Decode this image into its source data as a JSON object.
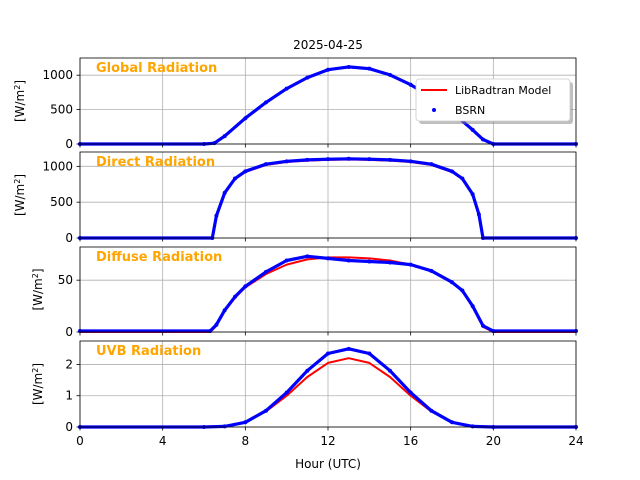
{
  "figure": {
    "title": "2025-04-25",
    "xlabel": "Hour (UTC)",
    "xlim": [
      0,
      24
    ],
    "xticks": [
      0,
      4,
      8,
      12,
      16,
      20,
      24
    ],
    "grid": true,
    "legend": {
      "placement": "top-right of first panel",
      "entries": [
        {
          "label": "LibRadtran Model",
          "color": "#ff0000",
          "style": "line"
        },
        {
          "label": "BSRN",
          "color": "#0000ff",
          "style": "dots"
        }
      ]
    },
    "panel_label_color": "#ffa500"
  },
  "chart_data": [
    {
      "type": "line",
      "panel_label": "Global Radiation",
      "ylabel_base": "[W/m",
      "ylabel_sup": "2",
      "ylabel_end": "]",
      "ylim": [
        0,
        1250
      ],
      "yticks": [
        0,
        500,
        1000
      ],
      "x": [
        0,
        6,
        6.5,
        7,
        8,
        9,
        10,
        11,
        12,
        13,
        14,
        15,
        16,
        17,
        18,
        19,
        19.5,
        20,
        24
      ],
      "series": [
        {
          "name": "LibRadtran Model",
          "color": "#ff0000",
          "values": [
            0,
            0,
            10,
            110,
            370,
            600,
            800,
            960,
            1075,
            1115,
            1090,
            1000,
            860,
            680,
            460,
            200,
            60,
            0,
            0
          ]
        },
        {
          "name": "BSRN",
          "color": "#0000ff",
          "values": [
            0,
            0,
            12,
            115,
            375,
            605,
            805,
            965,
            1080,
            1120,
            1095,
            1005,
            862,
            682,
            462,
            205,
            65,
            0,
            0
          ]
        }
      ]
    },
    {
      "type": "line",
      "panel_label": "Direct Radiation",
      "ylabel_base": "[W/m",
      "ylabel_sup": "2",
      "ylabel_end": "]",
      "ylim": [
        0,
        1200
      ],
      "yticks": [
        0,
        500,
        1000
      ],
      "x": [
        0,
        6.4,
        6.6,
        7,
        7.5,
        8,
        9,
        10,
        11,
        12,
        13,
        14,
        15,
        16,
        17,
        18,
        18.5,
        19,
        19.3,
        19.5,
        24
      ],
      "series": [
        {
          "name": "LibRadtran Model",
          "color": "#ff0000",
          "values": [
            0,
            0,
            300,
            620,
            820,
            920,
            1020,
            1060,
            1080,
            1090,
            1095,
            1090,
            1080,
            1060,
            1020,
            920,
            820,
            600,
            320,
            0,
            0
          ]
        },
        {
          "name": "BSRN",
          "color": "#0000ff",
          "values": [
            0,
            0,
            310,
            630,
            830,
            930,
            1030,
            1070,
            1090,
            1100,
            1105,
            1100,
            1090,
            1070,
            1030,
            930,
            830,
            610,
            330,
            0,
            0
          ]
        }
      ]
    },
    {
      "type": "line",
      "panel_label": "Diffuse Radiation",
      "ylabel_base": "[W/m",
      "ylabel_sup": "2",
      "ylabel_end": "]",
      "ylim": [
        0,
        82
      ],
      "yticks": [
        0,
        50
      ],
      "x": [
        0,
        6.3,
        6.6,
        7,
        7.5,
        8,
        9,
        10,
        11,
        12,
        13,
        14,
        15,
        16,
        17,
        18,
        18.5,
        19,
        19.5,
        20,
        24
      ],
      "series": [
        {
          "name": "LibRadtran Model",
          "color": "#ff0000",
          "values": [
            0,
            0,
            6,
            20,
            33,
            43,
            56,
            65,
            70,
            72,
            72,
            71,
            69,
            65,
            59,
            48,
            40,
            25,
            5,
            0,
            0
          ]
        },
        {
          "name": "BSRN",
          "color": "#0000ff",
          "values": [
            1,
            1,
            7,
            21,
            34,
            44,
            58,
            69,
            73,
            71,
            69,
            68,
            67,
            65,
            59,
            48,
            40,
            25,
            6,
            1,
            1
          ]
        }
      ]
    },
    {
      "type": "line",
      "panel_label": "UVB Radiation",
      "ylabel_base": "[W/m",
      "ylabel_sup": "2",
      "ylabel_end": "]",
      "ylim": [
        0,
        2.75
      ],
      "yticks": [
        0,
        1,
        2
      ],
      "x": [
        0,
        6,
        7,
        8,
        9,
        10,
        11,
        12,
        13,
        14,
        15,
        16,
        17,
        18,
        19,
        20,
        24
      ],
      "series": [
        {
          "name": "LibRadtran Model",
          "color": "#ff0000",
          "values": [
            0,
            0,
            0.02,
            0.15,
            0.5,
            1.0,
            1.6,
            2.05,
            2.2,
            2.05,
            1.6,
            1.0,
            0.5,
            0.15,
            0.02,
            0,
            0
          ]
        },
        {
          "name": "BSRN",
          "color": "#0000ff",
          "values": [
            0,
            0,
            0.02,
            0.15,
            0.52,
            1.1,
            1.8,
            2.35,
            2.5,
            2.35,
            1.8,
            1.1,
            0.52,
            0.15,
            0.02,
            0,
            0
          ]
        }
      ]
    }
  ]
}
